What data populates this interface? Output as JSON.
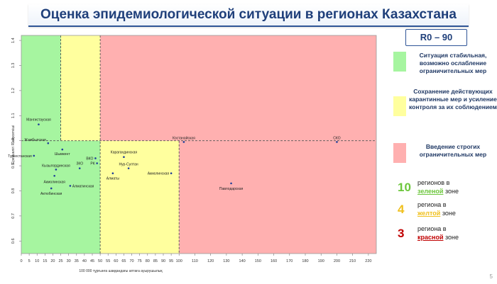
{
  "title": "Оценка эпидемиологической ситуации в регионах Казахстана",
  "r0_label": "R0 – 90",
  "legend": {
    "green": {
      "text": "Ситуация стабильная, возможно ослабление ограничительных мер",
      "color": "#a6f5a0"
    },
    "yellow": {
      "text": "Сохранение действующих карантинные мер и усиление контроля за их соблюдением",
      "color": "#ffff9e"
    },
    "red": {
      "text": "Введение строгих ограничительных мер",
      "color": "#ffb0b0"
    }
  },
  "counts": {
    "green": {
      "number": "10",
      "line1": "регионов в",
      "line2": "зеленой",
      "line3": " зоне",
      "color": "#6cc63c"
    },
    "yellow": {
      "number": "4",
      "line1": "региона в",
      "line2": "желтой",
      "line3": " зоне",
      "color": "#f0c01e"
    },
    "red": {
      "number": "3",
      "line1": "региона в",
      "line2": "красной",
      "line3": " зоне",
      "color": "#c00000"
    }
  },
  "page_number": "5",
  "chart_data": {
    "type": "scatter",
    "xlabel": "100 000 тұрғынға шаққандағы аптаға ауырушылық",
    "ylabel": "Ерекшелігі R көрсеткіші",
    "xlim": [
      0,
      225
    ],
    "ylim": [
      0.55,
      1.42
    ],
    "x_ticks": [
      0,
      5,
      10,
      15,
      20,
      25,
      30,
      35,
      40,
      45,
      50,
      55,
      60,
      65,
      70,
      75,
      80,
      85,
      90,
      95,
      100,
      110,
      120,
      130,
      140,
      150,
      160,
      170,
      180,
      190,
      200,
      210,
      220
    ],
    "y_ticks": [
      "0.6",
      "0.7",
      "0.8",
      "0.9",
      "1.0",
      "1.1",
      "1.2",
      "1.3",
      "1.4"
    ],
    "zones": [
      {
        "name": "green",
        "x0": 0,
        "x1": 50,
        "y0": 0.55,
        "y1": 1.0,
        "color": "#a6f5a0"
      },
      {
        "name": "green",
        "x0": 0,
        "x1": 25,
        "y0": 1.0,
        "y1": 1.42,
        "color": "#a6f5a0"
      },
      {
        "name": "yellow",
        "x0": 25,
        "x1": 50,
        "y0": 1.0,
        "y1": 1.42,
        "color": "#ffff9e"
      },
      {
        "name": "yellow",
        "x0": 50,
        "x1": 100,
        "y0": 0.55,
        "y1": 1.0,
        "color": "#ffff9e"
      },
      {
        "name": "red",
        "x0": 50,
        "x1": 225,
        "y0": 1.0,
        "y1": 1.42,
        "color": "#ffb0b0"
      },
      {
        "name": "red",
        "x0": 100,
        "x1": 225,
        "y0": 0.55,
        "y1": 1.0,
        "color": "#ffb0b0"
      }
    ],
    "threshold_lines": {
      "y": 1.0,
      "x_green": 50,
      "x_yellow": 100,
      "x_top": 25
    },
    "points": [
      {
        "label": "Мангистауская",
        "x": 11,
        "y": 1.065,
        "anchor": "middle",
        "dy": -5
      },
      {
        "label": "Жамбылская",
        "x": 17,
        "y": 0.99,
        "anchor": "end",
        "dy": -3
      },
      {
        "label": "Туркестанская",
        "x": 8,
        "y": 0.94,
        "anchor": "end",
        "dy": 2
      },
      {
        "label": "Шымкент",
        "x": 26,
        "y": 0.965,
        "anchor": "middle",
        "dy": 8
      },
      {
        "label": "Кызылординская",
        "x": 22,
        "y": 0.885,
        "anchor": "middle",
        "dy": -4
      },
      {
        "label": "Алматинская",
        "x": 31,
        "y": 0.82,
        "anchor": "start",
        "dy": 2
      },
      {
        "label": "ВКО",
        "x": 47,
        "y": 0.93,
        "anchor": "end",
        "dy": 2
      },
      {
        "label": "ЗКО",
        "x": 37,
        "y": 0.89,
        "anchor": "middle",
        "dy": -5
      },
      {
        "label": "РК",
        "x": 48,
        "y": 0.91,
        "anchor": "end",
        "dy": 2
      },
      {
        "label": "Акмолинская",
        "x": 21,
        "y": 0.86,
        "anchor": "middle",
        "dy": 10
      },
      {
        "label": "Актюбинская",
        "x": 19,
        "y": 0.81,
        "anchor": "middle",
        "dy": 9
      },
      {
        "label": "Карагандинская",
        "x": 65,
        "y": 0.935,
        "anchor": "middle",
        "dy": -5
      },
      {
        "label": "Нур-Султан",
        "x": 68,
        "y": 0.89,
        "anchor": "middle",
        "dy": -4
      },
      {
        "label": "Алматы",
        "x": 58,
        "y": 0.87,
        "anchor": "middle",
        "dy": 9
      },
      {
        "label": "Акмолинская",
        "x": 95,
        "y": 0.87,
        "anchor": "end",
        "dy": 2
      },
      {
        "label": "Костанайская",
        "x": 103,
        "y": 0.995,
        "anchor": "middle",
        "dy": -4
      },
      {
        "label": "Павлодарская",
        "x": 133,
        "y": 0.83,
        "anchor": "middle",
        "dy": 9
      },
      {
        "label": "СКО",
        "x": 200,
        "y": 0.995,
        "anchor": "middle",
        "dy": -4
      }
    ]
  }
}
